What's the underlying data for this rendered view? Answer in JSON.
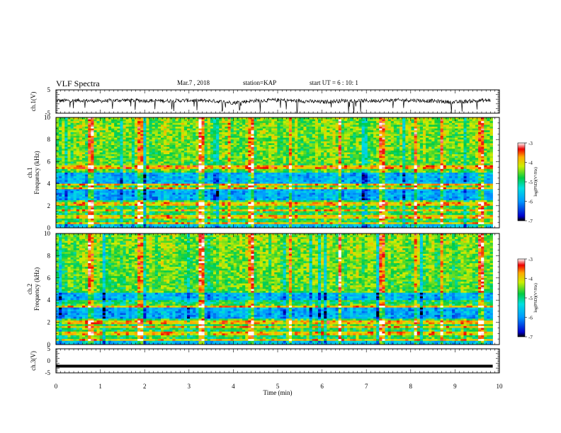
{
  "header": {
    "title": "VLF Spectra",
    "date": "Mar.7 , 2018",
    "station": "station=KAP",
    "start_ut": "start UT = 6 : 10: 1"
  },
  "chart_data": [
    {
      "type": "line",
      "panel": "ch1-waveform",
      "ylabel": "ch.1(V)",
      "ylim": [
        -5,
        5
      ],
      "y_ticks": [
        "5",
        "-5"
      ],
      "xlim": [
        0,
        10
      ],
      "series": [
        {
          "values_approx": {
            "x_min": [
              0,
              0.5,
              1,
              1.5,
              2,
              2.5,
              3,
              3.5,
              4,
              4.5,
              5,
              5.5,
              6,
              6.5,
              7,
              7.5,
              8,
              8.5,
              9,
              9.5,
              9.8
            ],
            "y_mean": [
              0.3,
              0.5,
              0.2,
              0.6,
              0.4,
              0.3,
              0.5,
              0.3,
              -0.5,
              0.4,
              0.6,
              0.3,
              -0.2,
              0.4,
              0.3,
              0.5,
              0.6,
              0.2,
              -0.3,
              0.4,
              0.5
            ]
          }
        }
      ]
    },
    {
      "type": "heatmap",
      "panel": "ch1-spectrogram",
      "ylabel_channel": "ch.1",
      "ylabel": "Frequency (kHz)",
      "ylim": [
        0,
        10
      ],
      "y_ticks": [
        "0",
        "2",
        "4",
        "6",
        "8",
        "10"
      ],
      "xlim": [
        0,
        10
      ],
      "colorbar": {
        "label": "log(PSD)(V²/Hz)",
        "range": [
          -7,
          -3
        ],
        "ticks": [
          "-3",
          "-4",
          "-5",
          "-6",
          "-7"
        ]
      },
      "features": {
        "bands_kHz": [
          {
            "from": 2.5,
            "to": 3.5,
            "level": "low"
          },
          {
            "from": 4.0,
            "to": 5.0,
            "level": "low"
          }
        ],
        "lines_kHz": [
          0.4,
          1.0,
          1.6,
          2.2,
          3.6,
          3.9,
          5.5
        ],
        "spikes_min": [
          0.8,
          1.9,
          3.3,
          3.9,
          4.4,
          5.3,
          6.4,
          7.35,
          7.4,
          8.1,
          8.7,
          9.6
        ]
      }
    },
    {
      "type": "heatmap",
      "panel": "ch2-spectrogram",
      "ylabel_channel": "ch.2",
      "ylabel": "Frequency (kHz)",
      "ylim": [
        0,
        10
      ],
      "y_ticks": [
        "0",
        "2",
        "4",
        "6",
        "8",
        "10"
      ],
      "xlim": [
        0,
        10
      ],
      "colorbar": {
        "label": "log(PSD)(V²/Hz)",
        "range": [
          -7,
          -3
        ],
        "ticks": [
          "-3",
          "-4",
          "-5",
          "-6",
          "-7"
        ]
      },
      "features": {
        "bands_kHz": [
          {
            "from": 2.3,
            "to": 3.3,
            "level": "low"
          },
          {
            "from": 3.6,
            "to": 4.6,
            "level": "low"
          }
        ],
        "lines_kHz": [
          0.4,
          1.0,
          1.6,
          2.0,
          3.4,
          3.8
        ],
        "spikes_min": [
          0.8,
          1.9,
          3.3,
          4.4,
          5.3,
          6.4,
          7.35,
          8.1,
          8.7,
          9.6
        ]
      }
    },
    {
      "type": "line",
      "panel": "ch3-waveform",
      "ylabel": "ch.3(V)",
      "ylim": [
        -5,
        5
      ],
      "y_ticks": [
        "5",
        "0",
        "-5"
      ],
      "xlim": [
        0,
        10
      ],
      "series": [
        {
          "x": [
            0,
            9.85
          ],
          "y": [
            -2.2,
            -2.2
          ]
        }
      ]
    }
  ],
  "x_axis": {
    "label": "Time (min)",
    "ticks": [
      "0",
      "1",
      "2",
      "3",
      "4",
      "5",
      "6",
      "7",
      "8",
      "9",
      "10"
    ]
  }
}
